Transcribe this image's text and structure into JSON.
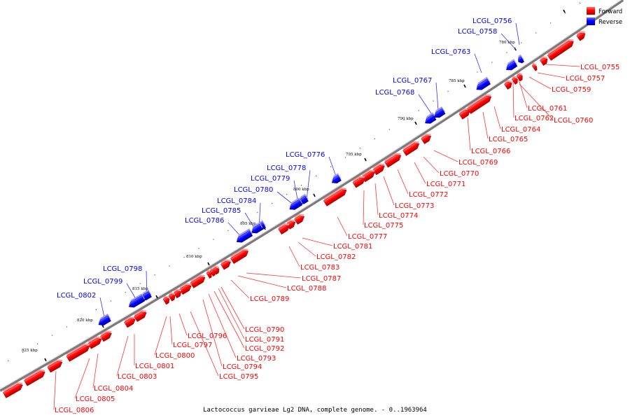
{
  "caption": "Lactococcus garvieae Lg2 DNA, complete genome. - 0..1963964",
  "legend": [
    {
      "label": "Forward",
      "color": "#ff0000"
    },
    {
      "label": "Reverse",
      "color": "#0000ff"
    }
  ],
  "colors": {
    "forward": "#ff0000",
    "reverse": "#0000ff",
    "backbone": "#888888"
  },
  "ticks": [
    "780 kbp",
    "785 kbp",
    "790 kbp",
    "795 kbp",
    "800 kbp",
    "805 kbp",
    "810 kbp",
    "815 kbp",
    "820 kbp",
    "825 kbp"
  ],
  "reverse_labels": [
    "LCGL_0756",
    "LCGL_0758",
    "LCGL_0763",
    "LCGL_0767",
    "LCGL_0768",
    "LCGL_0776",
    "LCGL_0778",
    "LCGL_0779",
    "LCGL_0780",
    "LCGL_0784",
    "LCGL_0785",
    "LCGL_0786",
    "LCGL_0798",
    "LCGL_0799",
    "LCGL_0802"
  ],
  "forward_labels": [
    "LCGL_0755",
    "LCGL_0757",
    "LCGL_0759",
    "LCGL_0761",
    "LCGL_0762",
    "LCGL_0760",
    "LCGL_0764",
    "LCGL_0765",
    "LCGL_0766",
    "LCGL_0769",
    "LCGL_0770",
    "LCGL_0771",
    "LCGL_0772",
    "LCGL_0773",
    "LCGL_0774",
    "LCGL_0775",
    "LCGL_0777",
    "LCGL_0781",
    "LCGL_0782",
    "LCGL_0783",
    "LCGL_0787",
    "LCGL_0788",
    "LCGL_0789",
    "LCGL_0790",
    "LCGL_0791",
    "LCGL_0792",
    "LCGL_0793",
    "LCGL_0794",
    "LCGL_0795",
    "LCGL_0796",
    "LCGL_0797",
    "LCGL_0800",
    "LCGL_0801",
    "LCGL_0803",
    "LCGL_0804",
    "LCGL_0805",
    "LCGL_0806"
  ]
}
